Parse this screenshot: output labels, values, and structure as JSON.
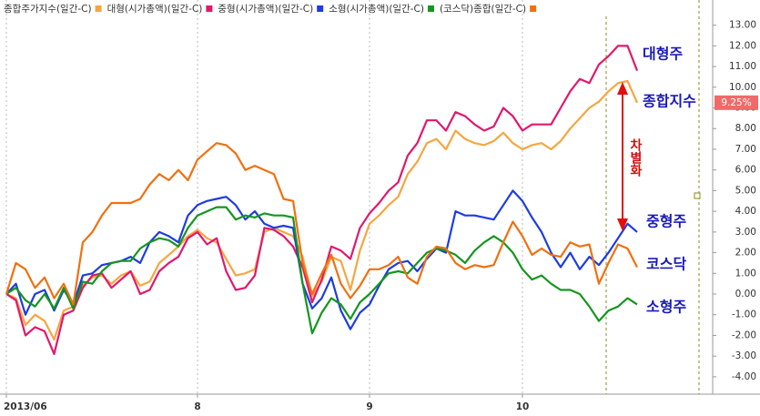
{
  "chart_data": {
    "type": "line",
    "categories": [
      "2013/06",
      null,
      null,
      null,
      null,
      null,
      null,
      null,
      null,
      null,
      null,
      null,
      null,
      null,
      null,
      null,
      null,
      null,
      null,
      null,
      "8",
      null,
      null,
      null,
      null,
      null,
      null,
      null,
      null,
      null,
      null,
      null,
      null,
      null,
      null,
      null,
      null,
      null,
      "9",
      null,
      null,
      null,
      null,
      null,
      null,
      null,
      null,
      null,
      null,
      null,
      null,
      null,
      null,
      null,
      "10",
      null,
      null,
      null,
      null,
      null,
      null,
      null,
      null,
      null,
      null,
      null,
      null
    ],
    "series": [
      {
        "name": "종합주가지수(일간-C)",
        "color": "#f5a640",
        "values": [
          0,
          -0.2,
          -1.5,
          -1.0,
          -1.3,
          -2.2,
          -0.8,
          -0.6,
          0.4,
          0.8,
          0.9,
          0.5,
          0.9,
          1.1,
          0.4,
          0.6,
          1.5,
          1.9,
          2.3,
          2.8,
          3.1,
          2.7,
          2.5,
          1.7,
          0.9,
          1.0,
          1.2,
          3.0,
          3.2,
          3.0,
          2.8,
          1.8,
          -0.1,
          0.6,
          1.8,
          1.6,
          0.2,
          2.1,
          3.4,
          3.8,
          4.3,
          4.7,
          5.8,
          6.4,
          7.3,
          7.5,
          7.0,
          7.9,
          7.5,
          7.3,
          7.2,
          7.4,
          7.8,
          7.3,
          7.0,
          7.2,
          7.3,
          7.0,
          7.4,
          8.0,
          8.5,
          9.0,
          9.3,
          9.8,
          10.2,
          10.3,
          9.25
        ]
      },
      {
        "name": "대형(시가총액)(일간-C)",
        "color": "#e0186c",
        "values": [
          0,
          -0.3,
          -2.0,
          -1.6,
          -1.8,
          -2.9,
          -1.0,
          -0.8,
          0.3,
          0.9,
          1.0,
          0.3,
          0.7,
          1.1,
          0.0,
          0.2,
          1.1,
          1.5,
          1.8,
          2.7,
          3.0,
          2.4,
          2.7,
          1.1,
          0.2,
          0.3,
          0.9,
          3.2,
          3.1,
          2.8,
          2.3,
          1.3,
          -0.4,
          0.7,
          2.3,
          2.1,
          1.7,
          3.2,
          3.9,
          4.4,
          5.0,
          5.4,
          6.7,
          7.3,
          8.4,
          8.4,
          7.9,
          8.8,
          8.6,
          8.2,
          7.9,
          8.1,
          9.0,
          8.6,
          7.9,
          8.2,
          8.2,
          8.2,
          9.0,
          9.8,
          10.4,
          10.2,
          11.1,
          11.5,
          12.0,
          12.0,
          10.8
        ]
      },
      {
        "name": "중형(시가총액)(일간-C)",
        "color": "#1e3ce0",
        "values": [
          0,
          0.5,
          -1.0,
          0.0,
          0.2,
          -0.8,
          0.2,
          -0.5,
          0.9,
          1.0,
          1.4,
          1.5,
          1.6,
          1.8,
          1.5,
          2.5,
          3.0,
          2.8,
          2.5,
          3.8,
          4.3,
          4.5,
          4.6,
          4.7,
          4.3,
          3.6,
          4.0,
          3.4,
          3.2,
          3.3,
          3.2,
          0.5,
          -0.7,
          -0.2,
          0.8,
          -0.8,
          -1.7,
          -0.9,
          -0.5,
          0.4,
          1.2,
          1.5,
          1.6,
          1.1,
          1.7,
          2.2,
          2.0,
          4.0,
          3.8,
          3.8,
          3.7,
          3.6,
          4.3,
          5.0,
          4.5,
          3.7,
          3.0,
          2.0,
          1.3,
          2.0,
          1.2,
          1.8,
          1.4,
          2.0,
          2.7,
          3.4,
          3.0
        ]
      },
      {
        "name": "소형(시가총액)(일간-C)",
        "color": "#14961e",
        "values": [
          0,
          0.3,
          -0.3,
          -0.6,
          0.0,
          -0.7,
          0.3,
          -0.7,
          0.6,
          0.5,
          1.1,
          1.5,
          1.6,
          1.6,
          2.2,
          2.5,
          2.7,
          2.6,
          2.3,
          3.2,
          3.8,
          4.0,
          4.2,
          4.2,
          3.6,
          3.8,
          3.7,
          3.9,
          3.8,
          3.8,
          3.7,
          0.5,
          -1.9,
          -0.9,
          -0.2,
          -0.5,
          -1.2,
          -0.4,
          0.0,
          0.5,
          1.0,
          1.1,
          1.0,
          1.5,
          2.0,
          2.2,
          2.1,
          1.9,
          1.5,
          2.1,
          2.5,
          2.8,
          2.5,
          2.0,
          1.2,
          0.7,
          0.9,
          0.5,
          0.2,
          0.2,
          0.0,
          -0.6,
          -1.3,
          -0.8,
          -0.6,
          -0.2,
          -0.5
        ]
      },
      {
        "name": "(코스닥)종합(일간-C)",
        "color": "#f07010",
        "values": [
          0,
          1.5,
          1.2,
          0.3,
          0.8,
          -0.2,
          0.5,
          -0.5,
          2.5,
          3.0,
          3.8,
          4.4,
          4.4,
          4.4,
          4.6,
          5.3,
          5.8,
          5.5,
          6.0,
          5.5,
          6.5,
          6.9,
          7.3,
          7.2,
          6.8,
          6.0,
          6.2,
          6.0,
          5.8,
          4.6,
          4.5,
          1.5,
          0.0,
          1.0,
          1.9,
          0.5,
          -0.2,
          0.4,
          1.2,
          1.2,
          1.4,
          1.8,
          0.8,
          0.5,
          1.8,
          2.3,
          2.2,
          1.5,
          1.2,
          1.4,
          1.3,
          1.4,
          2.5,
          3.5,
          2.8,
          1.9,
          2.2,
          1.9,
          1.8,
          2.5,
          2.3,
          2.4,
          0.5,
          1.5,
          2.4,
          2.2,
          1.3
        ]
      }
    ],
    "ylim": [
      -4.4,
      13.6
    ],
    "yticks": [
      {
        "value": 13,
        "label": "13.00"
      },
      {
        "value": 12,
        "label": "12.00"
      },
      {
        "value": 11,
        "label": "11.00"
      },
      {
        "value": 10,
        "label": "10.00"
      },
      {
        "value": 9,
        "label": "9.00"
      },
      {
        "value": 8,
        "label": "8.00"
      },
      {
        "value": 7,
        "label": "7.00"
      },
      {
        "value": 6,
        "label": "6.00"
      },
      {
        "value": 5,
        "label": "5.00"
      },
      {
        "value": 4,
        "label": "4.00"
      },
      {
        "value": 3,
        "label": "3.00"
      },
      {
        "value": 2,
        "label": "2.00"
      },
      {
        "value": 1,
        "label": "1.00"
      },
      {
        "value": 0,
        "label": "0.00"
      },
      {
        "value": -1,
        "label": "-1.00"
      },
      {
        "value": -2,
        "label": "-2.00"
      },
      {
        "value": -3,
        "label": "-3.00"
      },
      {
        "value": -4,
        "label": "-4.00"
      }
    ],
    "current_value": {
      "value": 9.25,
      "label": "9.25%"
    },
    "annotations": {
      "large": "대형주",
      "composite": "종합지수",
      "mid": "중형주",
      "kosdaq": "코스닥",
      "small": "소형주",
      "divergence": "차별화"
    }
  }
}
